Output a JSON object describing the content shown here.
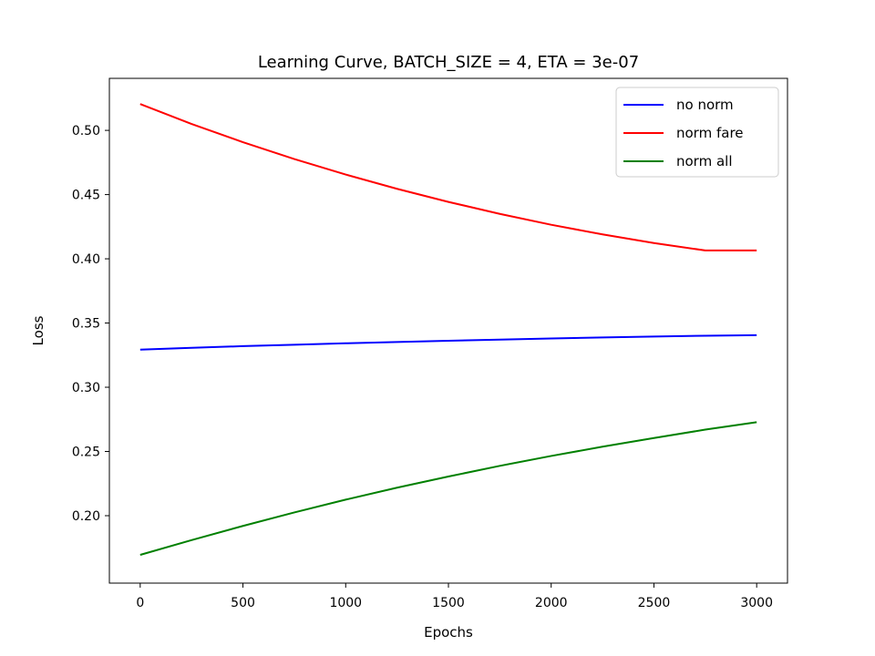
{
  "chart_data": {
    "type": "line",
    "title": "Learning Curve, BATCH_SIZE = 4, ETA = 3e-07",
    "xlabel": "Epochs",
    "ylabel": "Loss",
    "xlim": [
      -150,
      3150
    ],
    "ylim": [
      0.1475,
      0.5405
    ],
    "xticks": [
      0,
      500,
      1000,
      1500,
      2000,
      2500,
      3000
    ],
    "xtick_labels": [
      "0",
      "500",
      "1000",
      "1500",
      "2000",
      "2500",
      "3000"
    ],
    "yticks": [
      0.2,
      0.25,
      0.3,
      0.35,
      0.4,
      0.45,
      0.5
    ],
    "ytick_labels": [
      "0.20",
      "0.25",
      "0.30",
      "0.35",
      "0.40",
      "0.45",
      "0.50"
    ],
    "grid": false,
    "legend": "top-right",
    "x": [
      0,
      250,
      500,
      750,
      1000,
      1250,
      1500,
      1750,
      2000,
      2250,
      2500,
      2750,
      3000
    ],
    "series": [
      {
        "name": "no norm",
        "color": "#0000ff",
        "values": [
          0.3293,
          0.3307,
          0.332,
          0.3331,
          0.3342,
          0.3352,
          0.3362,
          0.3371,
          0.338,
          0.3388,
          0.3395,
          0.3401,
          0.3405
        ]
      },
      {
        "name": "norm fare",
        "color": "#ff0000",
        "values": [
          0.5205,
          0.505,
          0.4908,
          0.4777,
          0.4656,
          0.4545,
          0.4443,
          0.435,
          0.4265,
          0.419,
          0.4123,
          0.4065,
          0.4065
        ]
      },
      {
        "name": "norm all",
        "color": "#008000",
        "values": [
          0.1695,
          0.181,
          0.192,
          0.2025,
          0.2125,
          0.2218,
          0.2305,
          0.2388,
          0.2465,
          0.2537,
          0.2605,
          0.267,
          0.2728
        ]
      }
    ]
  }
}
